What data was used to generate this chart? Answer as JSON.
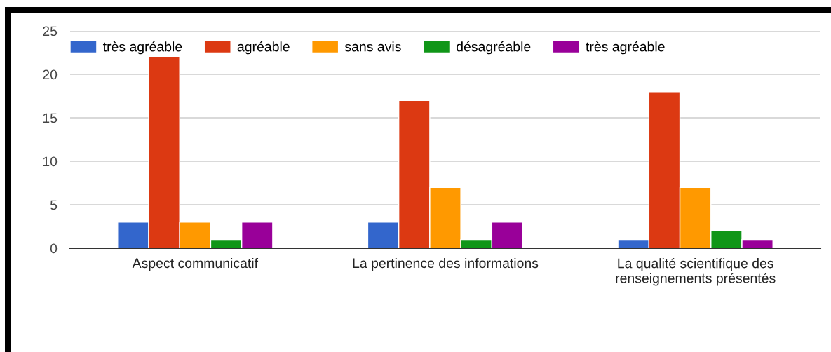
{
  "chart_data": {
    "type": "bar",
    "categories": [
      "Aspect communicatif",
      "La pertinence des informations",
      "La qualité scientifique des\nrenseignements présentés"
    ],
    "series": [
      {
        "name": "très agréable",
        "color": "#3366cc",
        "values": [
          3,
          3,
          1
        ]
      },
      {
        "name": "agréable",
        "color": "#dc3912",
        "values": [
          22,
          17,
          18
        ]
      },
      {
        "name": "sans avis",
        "color": "#ff9900",
        "values": [
          3,
          7,
          7
        ]
      },
      {
        "name": "désagréable",
        "color": "#109618",
        "values": [
          1,
          1,
          2
        ]
      },
      {
        "name": "très agréable",
        "color": "#990099",
        "values": [
          3,
          3,
          1
        ]
      }
    ],
    "ylim": [
      0,
      25
    ],
    "yticks": [
      0,
      5,
      10,
      15,
      20,
      25
    ],
    "grid": "y",
    "legend": "top left"
  }
}
